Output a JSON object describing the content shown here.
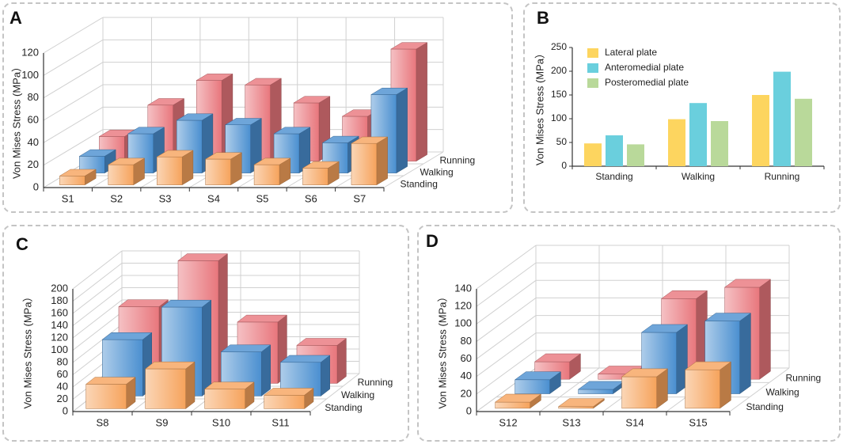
{
  "colors": {
    "red": "#e8767c",
    "blue": "#4a8fd0",
    "orange": "#f6a35c",
    "lateral": "#fdd55f",
    "anteromedial": "#6acfdd",
    "posteromedial": "#b9d99a",
    "grid": "#d0d0d0",
    "axis": "#333333"
  },
  "chart_data": [
    {
      "id": "A",
      "panel_label": "A",
      "type": "bar3d",
      "ylabel": "Von Mises Stress (MPa）",
      "categories": [
        "S1",
        "S2",
        "S3",
        "S4",
        "S5",
        "S6",
        "S7"
      ],
      "ylim": [
        0,
        120
      ],
      "yticks": [
        0,
        20,
        40,
        60,
        80,
        100,
        120
      ],
      "series": [
        {
          "name": "Standing",
          "color": "orange",
          "values": [
            8,
            18,
            25,
            23,
            18,
            15,
            37
          ]
        },
        {
          "name": "Walking",
          "color": "blue",
          "values": [
            15,
            35,
            47,
            43,
            35,
            27,
            70
          ]
        },
        {
          "name": "Running",
          "color": "red",
          "values": [
            22,
            50,
            72,
            68,
            52,
            40,
            100
          ]
        }
      ]
    },
    {
      "id": "B",
      "panel_label": "B",
      "type": "bar",
      "ylabel": "Von Mises Stress (MPa）",
      "categories": [
        "Standing",
        "Walking",
        "Running"
      ],
      "ylim": [
        0,
        250
      ],
      "yticks": [
        0,
        50,
        100,
        150,
        200,
        250
      ],
      "legend_position": "top-left",
      "series": [
        {
          "name": "Lateral plate",
          "color": "lateral",
          "values": [
            48,
            99,
            150
          ]
        },
        {
          "name": "Anteromedial plate",
          "color": "anteromedial",
          "values": [
            65,
            133,
            199
          ]
        },
        {
          "name": "Posteromedial plate",
          "color": "posteromedial",
          "values": [
            46,
            95,
            142
          ]
        }
      ]
    },
    {
      "id": "C",
      "panel_label": "C",
      "type": "bar3d",
      "ylabel": "Von Mises Stress (MPa）",
      "categories": [
        "S8",
        "S9",
        "S10",
        "S11"
      ],
      "ylim": [
        0,
        200
      ],
      "yticks": [
        0,
        20,
        40,
        60,
        80,
        100,
        120,
        140,
        160,
        180,
        200
      ],
      "series": [
        {
          "name": "Standing",
          "color": "orange",
          "values": [
            40,
            65,
            32,
            22
          ]
        },
        {
          "name": "Walking",
          "color": "blue",
          "values": [
            92,
            145,
            72,
            55
          ]
        },
        {
          "name": "Running",
          "color": "red",
          "values": [
            125,
            200,
            100,
            62
          ]
        }
      ]
    },
    {
      "id": "D",
      "panel_label": "D",
      "type": "bar3d",
      "ylabel": "Von Mises Stress (MPa）",
      "categories": [
        "S12",
        "S13",
        "S14",
        "S15"
      ],
      "ylim": [
        0,
        140
      ],
      "yticks": [
        0,
        20,
        40,
        60,
        80,
        100,
        120,
        140
      ],
      "series": [
        {
          "name": "Standing",
          "color": "orange",
          "values": [
            7,
            2,
            36,
            44
          ]
        },
        {
          "name": "Walking",
          "color": "blue",
          "values": [
            16,
            5,
            70,
            83
          ]
        },
        {
          "name": "Running",
          "color": "red",
          "values": [
            20,
            6,
            92,
            105
          ]
        }
      ]
    }
  ]
}
